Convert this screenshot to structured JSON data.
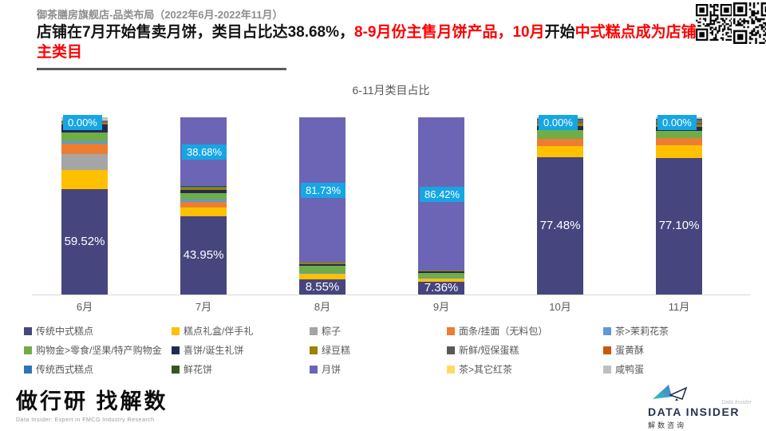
{
  "header": {
    "subtitle": "御茶膳房旗舰店-品类布局（2022年6月-2022年11月）",
    "title_lines": [
      [
        {
          "text": "店铺在7月开始售卖月饼，类目占比达38.68%，",
          "color": "k"
        },
        {
          "text": "8-9月份主售月饼产品，10月",
          "color": "r"
        },
        {
          "text": "开始",
          "color": "k"
        },
        {
          "text": "中式糕点成为店铺",
          "color": "r"
        }
      ],
      [
        {
          "text": "主类目",
          "color": "r"
        }
      ]
    ]
  },
  "chart_data": {
    "type": "bar",
    "stacked": true,
    "percent": true,
    "title": "6-11月类目占比",
    "categories": [
      "6月",
      "7月",
      "8月",
      "9月",
      "10月",
      "11月"
    ],
    "ylim": [
      0,
      100
    ],
    "legend_position": "bottom",
    "grid": false,
    "series": [
      {
        "name": "传统中式糕点",
        "color": "#46457e",
        "values": [
          59.52,
          43.95,
          8.55,
          7.36,
          77.48,
          77.1
        ]
      },
      {
        "name": "糕点礼盒/伴手礼",
        "color": "#ffc000",
        "values": [
          11.0,
          5.0,
          3.2,
          1.6,
          6.5,
          7.0
        ]
      },
      {
        "name": "粽子",
        "color": "#a5a5a5",
        "values": [
          8.8,
          0,
          0,
          0,
          0,
          0
        ]
      },
      {
        "name": "面条/挂面（无料包）",
        "color": "#ed7d31",
        "values": [
          6.0,
          3.5,
          0,
          0,
          4.0,
          4.0
        ]
      },
      {
        "name": "茶>茉莉花茶",
        "color": "#5b9bd5",
        "values": [
          1.2,
          1.0,
          0.5,
          0.5,
          0,
          0.4
        ]
      },
      {
        "name": "购物金>零食/坚果/特产购物金",
        "color": "#70ad47",
        "values": [
          5.0,
          3.8,
          4.2,
          2.9,
          5.0,
          4.0
        ]
      },
      {
        "name": "喜饼/诞生礼饼",
        "color": "#222b54",
        "values": [
          4.3,
          1.7,
          0.6,
          0.5,
          2.2,
          2.3
        ]
      },
      {
        "name": "绿豆糕",
        "color": "#9c8000",
        "values": [
          1.0,
          1.5,
          1.2,
          0.7,
          1.5,
          1.2
        ]
      },
      {
        "name": "新鲜/短保蛋糕",
        "color": "#595959",
        "values": [
          0.3,
          0,
          0,
          0,
          0.8,
          0.8
        ]
      },
      {
        "name": "蛋黄酥",
        "color": "#c55a11",
        "values": [
          0.2,
          0,
          0,
          0,
          0.5,
          1.2
        ]
      },
      {
        "name": "传统西式糕点",
        "color": "#2e75b6",
        "values": [
          0.8,
          0.4,
          0,
          0,
          0.5,
          0.6
        ]
      },
      {
        "name": "鲜花饼",
        "color": "#375623",
        "values": [
          0.2,
          0.5,
          0,
          0,
          0.5,
          0.5
        ]
      },
      {
        "name": "月饼",
        "color": "#6c65b5",
        "values": [
          0.0,
          38.68,
          81.73,
          86.42,
          0.0,
          0.0
        ]
      },
      {
        "name": "茶>其它红茶",
        "color": "#ffd966",
        "values": [
          0.3,
          0,
          0,
          0,
          0,
          0
        ]
      },
      {
        "name": "咸鸭蛋",
        "color": "#bfbfbf",
        "values": [
          1.4,
          0,
          0,
          0,
          1.0,
          0.9
        ]
      }
    ],
    "data_labels": {
      "inner_series": "传统中式糕点",
      "inner_texts": [
        "59.52%",
        "43.95%",
        "8.55%",
        "7.36%",
        "77.48%",
        "77.10%"
      ],
      "callout_series": "月饼",
      "callout_texts": [
        "0.00%",
        "38.68%",
        "81.73%",
        "86.42%",
        "0.00%",
        "0.00%"
      ],
      "callout_bg": "#17a6e4"
    }
  },
  "footer": {
    "left_logo_title": "做行研 找解数",
    "left_logo_tagline": "Data Insider: Expert in FMCG Industry Research",
    "right_logo_script": "Data Insider",
    "right_logo_name": "DATA INSIDER",
    "right_logo_cn": "解数咨询"
  }
}
